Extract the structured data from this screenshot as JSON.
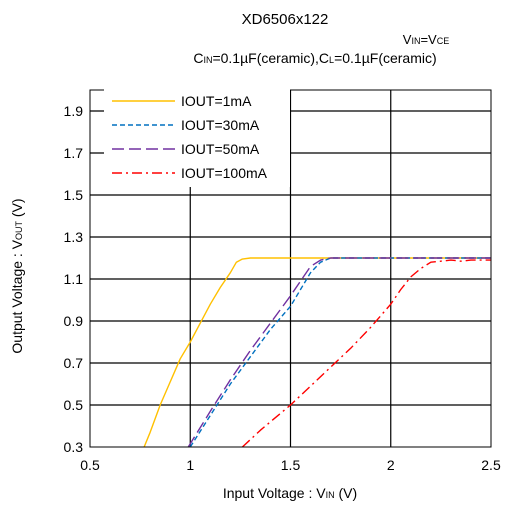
{
  "chart_data": {
    "type": "line",
    "title": "XD6506x122",
    "subtitle_vin_main": "V",
    "subtitle_vin_sub": "IN",
    "subtitle_vin_eq": "=V",
    "subtitle_vce_sub": "CE",
    "subtitle_cin_main": "C",
    "subtitle_cin_sub": "IN",
    "subtitle_cin_rest": "=0.1µF(ceramic),C",
    "subtitle_cl_sub": "L",
    "subtitle_cl_rest": "=0.1µF(ceramic)",
    "xlabel_main": "Input Voltage : V",
    "xlabel_sub": "IN",
    "xlabel_unit": " (V)",
    "ylabel_main": "Output Voltage : V",
    "ylabel_sub": "OUT",
    "ylabel_unit": " (V)",
    "xlim": [
      0.5,
      2.5
    ],
    "ylim": [
      0.3,
      2.0
    ],
    "x_ticks": [
      0.5,
      1.0,
      1.5,
      2.0,
      2.5
    ],
    "x_tick_labels": [
      "0.5",
      "1",
      "1.5",
      "2",
      "2.5"
    ],
    "y_ticks": [
      0.3,
      0.5,
      0.7,
      0.9,
      1.1,
      1.3,
      1.5,
      1.7,
      1.9
    ],
    "y_tick_labels": [
      "0.3",
      "0.5",
      "0.7",
      "0.9",
      "1.1",
      "1.3",
      "1.5",
      "1.7",
      "1.9"
    ],
    "grid": true,
    "legend_position": "top-left",
    "series": [
      {
        "name": "IOUT=1mA",
        "color": "#FFC000",
        "dash": "solid",
        "points": [
          [
            0.77,
            0.3
          ],
          [
            0.8,
            0.37
          ],
          [
            0.85,
            0.5
          ],
          [
            0.9,
            0.61
          ],
          [
            0.95,
            0.72
          ],
          [
            1.0,
            0.8
          ],
          [
            1.05,
            0.89
          ],
          [
            1.1,
            0.98
          ],
          [
            1.15,
            1.06
          ],
          [
            1.2,
            1.13
          ],
          [
            1.23,
            1.18
          ],
          [
            1.26,
            1.195
          ],
          [
            1.3,
            1.2
          ],
          [
            2.5,
            1.2
          ]
        ]
      },
      {
        "name": "IOUT=30mA",
        "color": "#0070C0",
        "dash": "short-dash",
        "points": [
          [
            1.0,
            0.3
          ],
          [
            1.1,
            0.45
          ],
          [
            1.2,
            0.6
          ],
          [
            1.3,
            0.73
          ],
          [
            1.4,
            0.86
          ],
          [
            1.5,
            0.97
          ],
          [
            1.55,
            1.05
          ],
          [
            1.6,
            1.13
          ],
          [
            1.65,
            1.18
          ],
          [
            1.7,
            1.2
          ],
          [
            2.5,
            1.2
          ]
        ]
      },
      {
        "name": "IOUT=50mA",
        "color": "#7030A0",
        "dash": "long-dash",
        "points": [
          [
            0.99,
            0.3
          ],
          [
            1.1,
            0.47
          ],
          [
            1.2,
            0.62
          ],
          [
            1.3,
            0.76
          ],
          [
            1.4,
            0.89
          ],
          [
            1.5,
            1.02
          ],
          [
            1.55,
            1.09
          ],
          [
            1.6,
            1.16
          ],
          [
            1.65,
            1.19
          ],
          [
            1.7,
            1.2
          ],
          [
            2.5,
            1.2
          ]
        ]
      },
      {
        "name": "IOUT=100mA",
        "color": "#FF0000",
        "dash": "dash-dot",
        "points": [
          [
            1.26,
            0.3
          ],
          [
            1.35,
            0.38
          ],
          [
            1.5,
            0.5
          ],
          [
            1.6,
            0.59
          ],
          [
            1.7,
            0.68
          ],
          [
            1.8,
            0.77
          ],
          [
            1.9,
            0.87
          ],
          [
            2.0,
            0.98
          ],
          [
            2.05,
            1.05
          ],
          [
            2.1,
            1.11
          ],
          [
            2.15,
            1.15
          ],
          [
            2.2,
            1.18
          ],
          [
            2.3,
            1.19
          ],
          [
            2.35,
            1.185
          ],
          [
            2.4,
            1.19
          ],
          [
            2.5,
            1.19
          ]
        ]
      }
    ]
  }
}
